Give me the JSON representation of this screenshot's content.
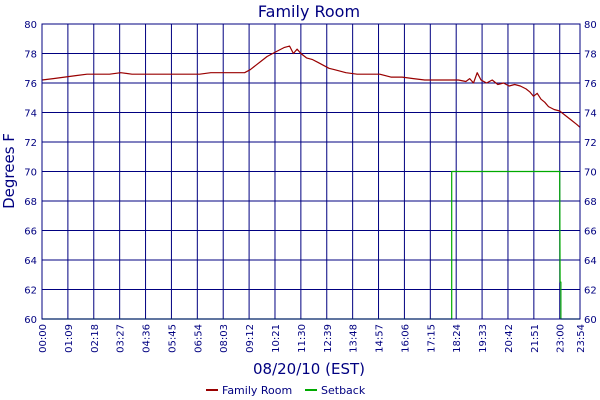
{
  "chart_data": {
    "type": "line",
    "title": "Family Room",
    "xlabel": "08/20/10 (EST)",
    "ylabel": "Degrees F",
    "xlim": [
      "00:00",
      "23:54"
    ],
    "ylim": [
      60,
      80
    ],
    "yticks": [
      60,
      62,
      64,
      66,
      68,
      70,
      72,
      74,
      76,
      78,
      80
    ],
    "xticks": [
      "00:00",
      "01:09",
      "02:18",
      "03:27",
      "04:36",
      "05:45",
      "06:54",
      "08:03",
      "09:12",
      "10:21",
      "11:30",
      "12:39",
      "13:48",
      "14:57",
      "16:06",
      "17:15",
      "18:24",
      "19:33",
      "20:42",
      "21:51",
      "23:00",
      "23:54"
    ],
    "grid": true,
    "legend_position": "bottom",
    "series": [
      {
        "name": "Family Room",
        "color": "#990000",
        "x": [
          "00:00",
          "00:30",
          "01:00",
          "01:30",
          "02:00",
          "02:30",
          "03:00",
          "03:30",
          "04:00",
          "04:30",
          "05:00",
          "05:30",
          "06:00",
          "06:30",
          "07:00",
          "07:30",
          "08:00",
          "08:30",
          "09:00",
          "09:15",
          "09:30",
          "09:45",
          "10:00",
          "10:15",
          "10:30",
          "10:45",
          "11:00",
          "11:10",
          "11:20",
          "11:30",
          "11:45",
          "12:00",
          "12:15",
          "12:30",
          "12:45",
          "13:00",
          "13:15",
          "13:30",
          "14:00",
          "14:30",
          "15:00",
          "15:30",
          "16:00",
          "16:30",
          "17:00",
          "17:30",
          "18:00",
          "18:30",
          "18:50",
          "19:00",
          "19:10",
          "19:20",
          "19:30",
          "19:45",
          "20:00",
          "20:15",
          "20:30",
          "20:45",
          "21:00",
          "21:15",
          "21:30",
          "21:40",
          "21:50",
          "22:00",
          "22:10",
          "22:20",
          "22:30",
          "22:45",
          "23:00",
          "23:15",
          "23:30",
          "23:45",
          "23:54"
        ],
        "y": [
          76.2,
          76.3,
          76.4,
          76.5,
          76.6,
          76.6,
          76.6,
          76.7,
          76.6,
          76.6,
          76.6,
          76.6,
          76.6,
          76.6,
          76.6,
          76.7,
          76.7,
          76.7,
          76.7,
          76.9,
          77.2,
          77.5,
          77.8,
          78.0,
          78.2,
          78.4,
          78.5,
          78.0,
          78.3,
          78.0,
          77.7,
          77.6,
          77.4,
          77.2,
          77.0,
          76.9,
          76.8,
          76.7,
          76.6,
          76.6,
          76.6,
          76.4,
          76.4,
          76.3,
          76.2,
          76.2,
          76.2,
          76.2,
          76.1,
          76.3,
          76.0,
          76.7,
          76.2,
          76.0,
          76.2,
          75.9,
          76.0,
          75.8,
          75.9,
          75.8,
          75.6,
          75.4,
          75.1,
          75.3,
          74.9,
          74.7,
          74.4,
          74.2,
          74.1,
          73.8,
          73.5,
          73.2,
          73.0
        ]
      },
      {
        "name": "Setback",
        "color": "#00aa00",
        "x": [
          "00:00",
          "18:00",
          "18:12",
          "18:12",
          "18:24",
          "23:00",
          "23:01",
          "23:03",
          "23:03",
          "23:54"
        ],
        "y": [
          60,
          60,
          60,
          70,
          70,
          70,
          62.5,
          62.5,
          60,
          60
        ]
      }
    ]
  }
}
